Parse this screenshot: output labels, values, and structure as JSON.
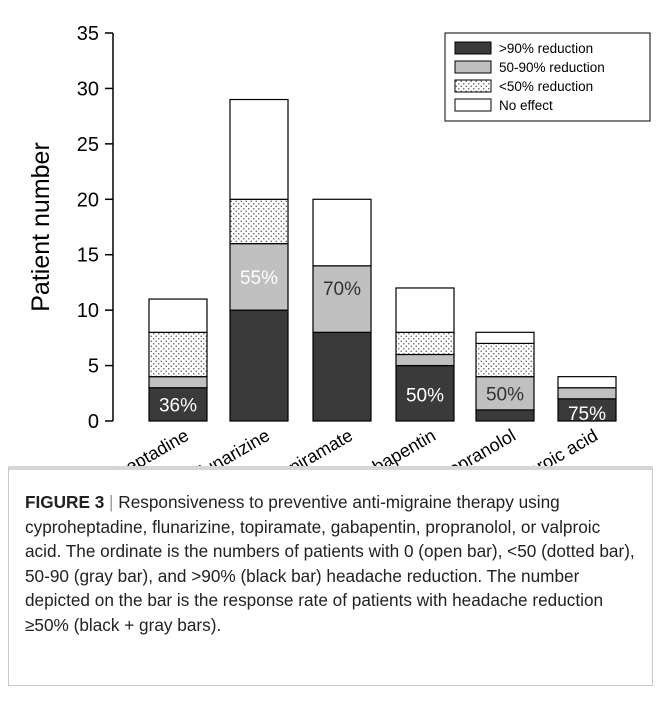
{
  "chart_data": {
    "type": "bar",
    "stacked": true,
    "ylabel": "Patient number",
    "xlabel": "",
    "ylim": [
      0,
      35
    ],
    "yticks": [
      0,
      5,
      10,
      15,
      20,
      25,
      30,
      35
    ],
    "grid": false,
    "legend_position": "top-right",
    "categories": [
      "Cyproheptadine",
      "Flunarizine",
      "Topiramate",
      "Gabapentin",
      "Propranolol",
      "Valproic acid"
    ],
    "series": [
      {
        "name": ">90% reduction",
        "values": [
          3,
          10,
          8,
          5,
          1,
          2
        ],
        "fill": "#3a3a3a",
        "pattern": "solid"
      },
      {
        "name": "50-90% reduction",
        "values": [
          1,
          6,
          6,
          1,
          3,
          1
        ],
        "fill": "#c0c0c0",
        "pattern": "solid"
      },
      {
        "name": "<50% reduction",
        "values": [
          4,
          4,
          0,
          2,
          3,
          0
        ],
        "fill": "#ffffff",
        "pattern": "dots"
      },
      {
        "name": "No effect",
        "values": [
          3,
          9,
          6,
          4,
          1,
          1
        ],
        "fill": "#ffffff",
        "pattern": "solid"
      }
    ],
    "annotations": [
      {
        "category": "Cyproheptadine",
        "text": "36%",
        "y": 1.5,
        "color": "#ffffff"
      },
      {
        "category": "Flunarizine",
        "text": "55%",
        "y": 13.0,
        "color": "#ffffff"
      },
      {
        "category": "Topiramate",
        "text": "70%",
        "y": 12.0,
        "color": "#333333"
      },
      {
        "category": "Gabapentin",
        "text": "50%",
        "y": 2.4,
        "color": "#ffffff"
      },
      {
        "category": "Propranolol",
        "text": "50%",
        "y": 2.5,
        "color": "#333333"
      },
      {
        "category": "Valproic acid",
        "text": "75%",
        "y": 0.7,
        "color": "#ffffff"
      }
    ]
  },
  "caption": {
    "label": "FIGURE 3",
    "separator": "|",
    "text": "Responsiveness to preventive anti-migraine therapy using cyproheptadine, flunarizine, topiramate, gabapentin, propranolol, or valproic acid. The ordinate is the numbers of patients with 0 (open bar), <50 (dotted bar), 50-90 (gray bar), and >90% (black bar) headache reduction. The number depicted on the bar is the response rate of patients with headache reduction ≥50% (black + gray bars)."
  },
  "colors": {
    "axis": "#000000",
    "dark_bar": "#3a3a3a",
    "gray_bar": "#c0c0c0",
    "caption_border": "#c9c9c9"
  }
}
